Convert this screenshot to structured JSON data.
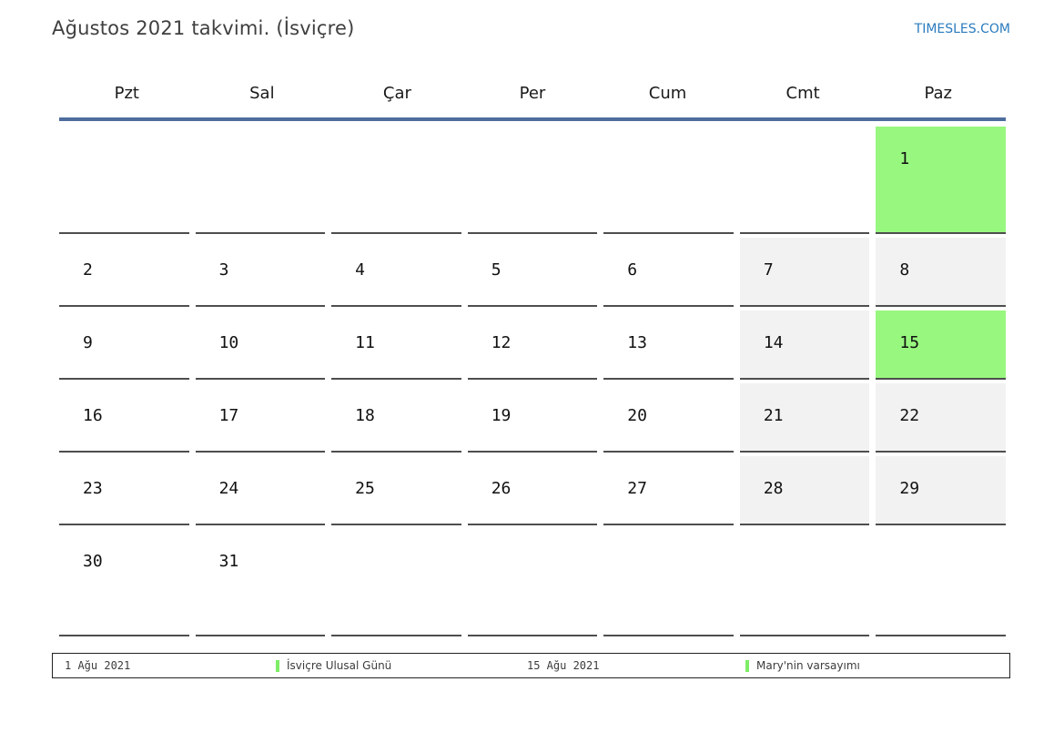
{
  "header": {
    "title": "Ağustos 2021 takvimi. (İsviçre)",
    "site_link": "TIMESLES.COM"
  },
  "calendar": {
    "weekday_headers": [
      "Pzt",
      "Sal",
      "Çar",
      "Per",
      "Cum",
      "Cmt",
      "Paz"
    ],
    "weeks": [
      [
        "",
        "",
        "",
        "",
        "",
        "",
        "1"
      ],
      [
        "2",
        "3",
        "4",
        "5",
        "6",
        "7",
        "8"
      ],
      [
        "9",
        "10",
        "11",
        "12",
        "13",
        "14",
        "15"
      ],
      [
        "16",
        "17",
        "18",
        "19",
        "20",
        "21",
        "22"
      ],
      [
        "23",
        "24",
        "25",
        "26",
        "27",
        "28",
        "29"
      ],
      [
        "30",
        "31",
        "",
        "",
        "",
        "",
        ""
      ]
    ],
    "holiday_days": [
      "1",
      "15"
    ],
    "weekend_columns": [
      5,
      6
    ]
  },
  "legend": {
    "items": [
      {
        "date": "1 Ağu 2021",
        "label": "İsviçre Ulusal Günü"
      },
      {
        "date": "15 Ağu 2021",
        "label": "Mary'nin varsayımı"
      }
    ]
  },
  "colors": {
    "holiday_green": "#98f77f",
    "weekend_gray": "#f2f2f2",
    "header_line_blue": "#4d6d9d",
    "link_blue": "#2b7cbe",
    "cell_border": "#4e4e4e",
    "legend_marker_green": "#7ded66"
  }
}
